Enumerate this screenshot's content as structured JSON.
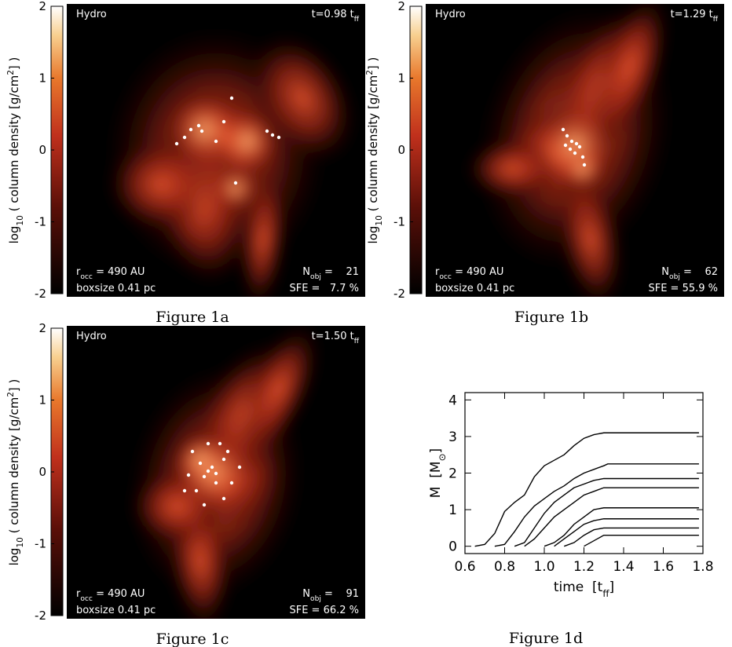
{
  "colorbar": {
    "label": {
      "main": "log",
      "sub": "10",
      "mid": " ( column density [g/cm",
      "sup": "2",
      "tail": "] )"
    },
    "lim": [
      -2,
      2
    ],
    "ticks": [
      2,
      1,
      0,
      -1,
      -2
    ]
  },
  "panels": [
    {
      "label": "Hydro",
      "time": {
        "main": "t=0.98 t",
        "sub": "ff"
      },
      "r_occ": {
        "main": "r",
        "sub": "occ",
        "tail": " = 490 AU"
      },
      "boxsize": "boxsize 0.41 pc",
      "n_obj": {
        "main": "N",
        "sub": "obj",
        "tail": " =    21"
      },
      "sfe": "SFE =   7.7 %",
      "caption": "Figure 1a"
    },
    {
      "label": "Hydro",
      "time": {
        "main": "t=1.29 t",
        "sub": "ff"
      },
      "r_occ": {
        "main": "r",
        "sub": "occ",
        "tail": " = 490 AU"
      },
      "boxsize": "boxsize 0.41 pc",
      "n_obj": {
        "main": "N",
        "sub": "obj",
        "tail": " =    62"
      },
      "sfe": "SFE = 55.9 %",
      "caption": "Figure 1b"
    },
    {
      "label": "Hydro",
      "time": {
        "main": "t=1.50 t",
        "sub": "ff"
      },
      "r_occ": {
        "main": "r",
        "sub": "occ",
        "tail": " = 490 AU"
      },
      "boxsize": "boxsize 0.41 pc",
      "n_obj": {
        "main": "N",
        "sub": "obj",
        "tail": " =    91"
      },
      "sfe": "SFE = 66.2 %",
      "caption": "Figure 1c"
    }
  ],
  "chart_data": {
    "type": "line",
    "caption": "Figure 1d",
    "xlabel": {
      "main": "time  [t",
      "sub": "ff",
      "tail": "]"
    },
    "ylabel": {
      "main": "M  [M",
      "sub": "⊙",
      "tail": "]"
    },
    "x": [
      0.6,
      0.65,
      0.7,
      0.75,
      0.8,
      0.85,
      0.9,
      0.95,
      1.0,
      1.05,
      1.1,
      1.15,
      1.2,
      1.25,
      1.3,
      1.32,
      1.78
    ],
    "series": [
      {
        "color": "#000000",
        "values": [
          null,
          0,
          0.05,
          0.35,
          0.95,
          1.2,
          1.4,
          1.9,
          2.2,
          2.35,
          2.5,
          2.75,
          2.95,
          3.05,
          3.1,
          3.1,
          3.1
        ]
      },
      {
        "color": "#000000",
        "values": [
          null,
          null,
          null,
          0,
          0.05,
          0.4,
          0.8,
          1.1,
          1.3,
          1.5,
          1.65,
          1.85,
          2.0,
          2.1,
          2.2,
          2.25,
          2.25
        ]
      },
      {
        "color": "#000000",
        "values": [
          null,
          null,
          null,
          null,
          null,
          0,
          0.1,
          0.5,
          0.9,
          1.2,
          1.4,
          1.6,
          1.7,
          1.8,
          1.85,
          1.85,
          1.85
        ]
      },
      {
        "color": "#000000",
        "values": [
          null,
          null,
          null,
          null,
          null,
          null,
          0,
          0.2,
          0.5,
          0.8,
          1.0,
          1.2,
          1.4,
          1.5,
          1.6,
          1.6,
          1.6
        ]
      },
      {
        "color": "#000000",
        "values": [
          null,
          null,
          null,
          null,
          null,
          null,
          null,
          null,
          0,
          0.1,
          0.3,
          0.6,
          0.8,
          1.0,
          1.05,
          1.05,
          1.05
        ]
      },
      {
        "color": "#000000",
        "values": [
          null,
          null,
          null,
          null,
          null,
          null,
          null,
          null,
          null,
          0,
          0.2,
          0.4,
          0.6,
          0.7,
          0.75,
          0.75,
          0.75
        ]
      },
      {
        "color": "#000000",
        "values": [
          null,
          null,
          null,
          null,
          null,
          null,
          null,
          null,
          null,
          null,
          0,
          0.1,
          0.3,
          0.45,
          0.5,
          0.5,
          0.5
        ]
      },
      {
        "color": "#000000",
        "values": [
          null,
          null,
          null,
          null,
          null,
          null,
          null,
          null,
          null,
          null,
          null,
          null,
          0,
          0.15,
          0.3,
          0.3,
          0.3
        ]
      }
    ],
    "xlim": [
      0.6,
      1.8
    ],
    "xticks": [
      0.6,
      0.8,
      {
        "value": 1,
        "label": "1.0"
      },
      1.2,
      1.4,
      1.6,
      1.8
    ],
    "ylim": [
      -0.2,
      4.2
    ],
    "yticks": [
      0,
      1,
      2,
      3,
      4
    ]
  }
}
